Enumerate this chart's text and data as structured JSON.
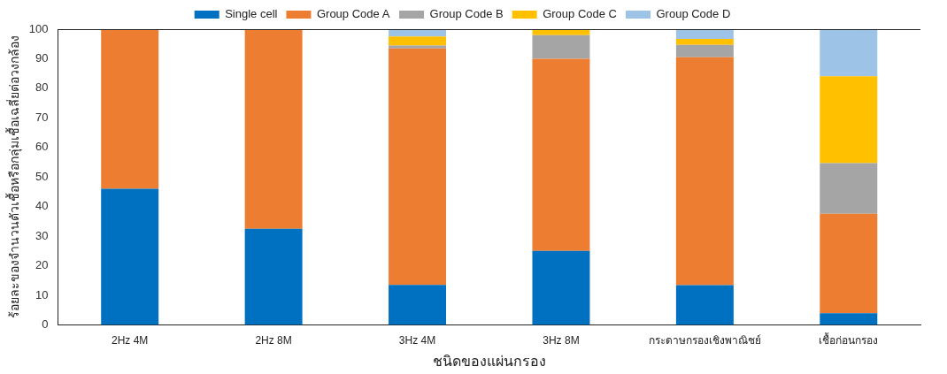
{
  "chart_data": {
    "type": "bar",
    "stacked": true,
    "xlabel": "ชนิดของแผ่นกรอง",
    "ylabel": "ร้อยละของจำนวนตัวเชื้อหรือกลุ่มเชื้อเฉลี่ยต่อวงกล้อง",
    "categories": [
      "2Hz 4M",
      "2Hz 8M",
      "3Hz 4M",
      "3Hz 8M",
      "กระดาษกรองเชิงพาณิชย์",
      "เชื้อก่อนกรอง"
    ],
    "series": [
      {
        "name": "Single cell",
        "color": "#0070c0",
        "values": [
          46,
          32.5,
          13.5,
          25,
          13.4,
          3.9
        ]
      },
      {
        "name": "Group Code A",
        "color": "#ed7d31",
        "values": [
          54,
          67.5,
          80,
          65,
          77.1,
          33.7
        ]
      },
      {
        "name": "Group Code B",
        "color": "#a5a5a5",
        "values": [
          0,
          0,
          1,
          8,
          4.2,
          17.1
        ]
      },
      {
        "name": "Group Code C",
        "color": "#ffc000",
        "values": [
          0,
          0,
          3,
          2,
          2,
          29.4
        ]
      },
      {
        "name": "Group Code D",
        "color": "#9dc3e6",
        "values": [
          0,
          0,
          2.5,
          0,
          3.3,
          15.9
        ]
      }
    ],
    "ylim": [
      0,
      100
    ],
    "yticks": [
      0,
      10,
      20,
      30,
      40,
      50,
      60,
      70,
      80,
      90,
      100
    ],
    "legend": "top"
  }
}
